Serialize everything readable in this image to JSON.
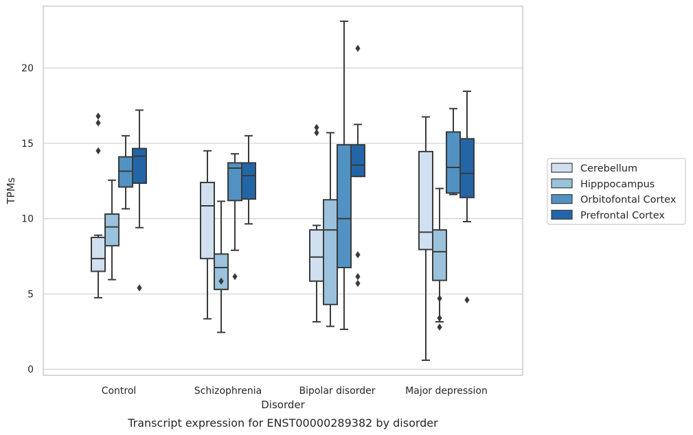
{
  "chart_data": {
    "type": "box",
    "caption": "Transcript expression for ENST00000289382 by disorder",
    "xlabel": "Disorder",
    "ylabel": "TPMs",
    "ylim": [
      -0.4,
      24.1
    ],
    "yticks": [
      0,
      5,
      10,
      15,
      20
    ],
    "grid": "horizontal",
    "legend_position": "right",
    "categories": [
      "Control",
      "Schizophrenia",
      "Bipolar disorder",
      "Major depression"
    ],
    "series": [
      {
        "name": "Cerebellum",
        "color": "#d0e0f1",
        "boxes": [
          {
            "whisker_low": 4.75,
            "q1": 6.5,
            "median": 7.35,
            "q3": 8.75,
            "whisker_high": 8.9,
            "outliers": [
              14.5,
              16.35,
              16.8
            ]
          },
          {
            "whisker_low": 3.35,
            "q1": 7.35,
            "median": 10.85,
            "q3": 12.4,
            "whisker_high": 14.5,
            "outliers": []
          },
          {
            "whisker_low": 3.15,
            "q1": 5.85,
            "median": 7.45,
            "q3": 9.25,
            "whisker_high": 9.55,
            "outliers": [
              15.7,
              16.05
            ]
          },
          {
            "whisker_low": 0.6,
            "q1": 7.95,
            "median": 9.1,
            "q3": 14.45,
            "whisker_high": 16.75,
            "outliers": []
          }
        ]
      },
      {
        "name": "Hipppocampus",
        "color": "#9ac2dc",
        "boxes": [
          {
            "whisker_low": 5.95,
            "q1": 8.2,
            "median": 9.45,
            "q3": 10.3,
            "whisker_high": 12.55,
            "outliers": []
          },
          {
            "whisker_low": 2.45,
            "q1": 5.3,
            "median": 6.75,
            "q3": 7.65,
            "whisker_high": 11.15,
            "outliers": [
              5.85
            ]
          },
          {
            "whisker_low": 2.85,
            "q1": 4.3,
            "median": 9.25,
            "q3": 11.25,
            "whisker_high": 15.7,
            "outliers": []
          },
          {
            "whisker_low": 3.15,
            "q1": 5.9,
            "median": 7.8,
            "q3": 9.25,
            "whisker_high": 12.0,
            "outliers": [
              2.8,
              3.4,
              4.7
            ]
          }
        ]
      },
      {
        "name": "Orbitofontal Cortex",
        "color": "#5192c2",
        "boxes": [
          {
            "whisker_low": 10.65,
            "q1": 12.1,
            "median": 13.15,
            "q3": 14.1,
            "whisker_high": 15.5,
            "outliers": []
          },
          {
            "whisker_low": 7.9,
            "q1": 11.2,
            "median": 13.35,
            "q3": 13.7,
            "whisker_high": 14.3,
            "outliers": [
              6.15
            ]
          },
          {
            "whisker_low": 2.65,
            "q1": 6.75,
            "median": 10.0,
            "q3": 14.9,
            "whisker_high": 23.1,
            "outliers": []
          },
          {
            "whisker_low": 11.6,
            "q1": 11.7,
            "median": 13.4,
            "q3": 15.75,
            "whisker_high": 17.3,
            "outliers": []
          }
        ]
      },
      {
        "name": "Prefrontal Cortex",
        "color": "#2266a8",
        "boxes": [
          {
            "whisker_low": 9.4,
            "q1": 12.35,
            "median": 14.15,
            "q3": 14.65,
            "whisker_high": 17.2,
            "outliers": [
              5.4
            ]
          },
          {
            "whisker_low": 9.65,
            "q1": 11.3,
            "median": 12.85,
            "q3": 13.7,
            "whisker_high": 15.5,
            "outliers": []
          },
          {
            "whisker_low": 12.8,
            "q1": 12.8,
            "median": 13.55,
            "q3": 14.9,
            "whisker_high": 16.25,
            "outliers": [
              5.7,
              6.15,
              7.6,
              21.3
            ]
          },
          {
            "whisker_low": 9.8,
            "q1": 11.4,
            "median": 13.0,
            "q3": 15.3,
            "whisker_high": 18.45,
            "outliers": [
              4.6
            ]
          }
        ]
      }
    ]
  }
}
